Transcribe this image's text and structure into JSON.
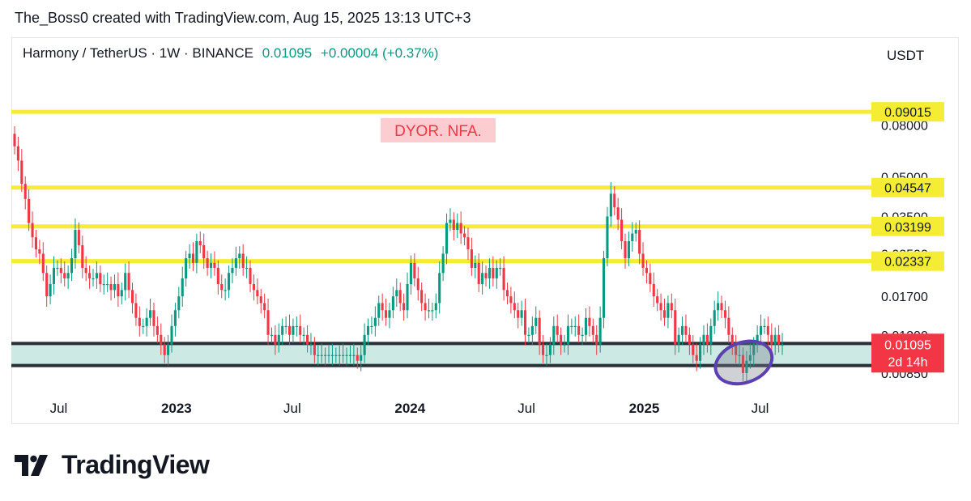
{
  "header": {
    "credit": "The_Boss0 created with TradingView.com, Aug 15, 2025 13:13 UTC+3"
  },
  "symbol": {
    "name": "Harmony / TetherUS · 1W · BINANCE",
    "last": "0.01095",
    "change": "+0.00004 (+0.37%)"
  },
  "axis_unit": "USDT",
  "brand": {
    "name": "TradingView",
    "logo": "tradingview-logo-icon"
  },
  "colors": {
    "up": "#089981",
    "down": "#f23645",
    "level": "#f5ec34",
    "zone": "#cde9e3",
    "marker": "#5b3fb3",
    "label_box": "#f5ec34",
    "current_box": "#f23645"
  },
  "chart_data": {
    "type": "candlestick",
    "y_scale": "log",
    "ylim": [
      0.0075,
      0.14
    ],
    "y_ticks": [
      "0.08000",
      "0.05000",
      "0.03500",
      "0.02500",
      "0.01700",
      "0.01200",
      "0.00850"
    ],
    "x_ticks": [
      "Jul",
      "2023",
      "Jul",
      "2024",
      "Jul",
      "2025",
      "Jul"
    ],
    "x_tick_bold": [
      false,
      true,
      false,
      true,
      false,
      true,
      false
    ],
    "x_tick_dates": [
      "2022-07-01",
      "2023-01-01",
      "2023-07-01",
      "2024-01-01",
      "2024-07-01",
      "2025-01-01",
      "2025-07-01"
    ],
    "xlim": [
      "2022-04-18",
      "2025-12-22"
    ],
    "horizontal_levels": [
      {
        "value": 0.09015,
        "label": "0.09015"
      },
      {
        "value": 0.04547,
        "label": "0.04547"
      },
      {
        "value": 0.03199,
        "label": "0.03199"
      },
      {
        "value": 0.02337,
        "label": "0.02337"
      }
    ],
    "support_zone": {
      "low": 0.0091,
      "high": 0.0111
    },
    "current_price": {
      "value": 0.01095,
      "label": "0.01095",
      "countdown": "2d 14h"
    },
    "annotation": "DYOR. NFA.",
    "highlight": {
      "from": "2025-04-21",
      "to": "2025-07-21",
      "low": 0.0078,
      "high": 0.0112
    },
    "candles_close": [
      0.066,
      0.058,
      0.047,
      0.041,
      0.033,
      0.029,
      0.026,
      0.025,
      0.021,
      0.017,
      0.019,
      0.022,
      0.022,
      0.021,
      0.02,
      0.021,
      0.024,
      0.031,
      0.027,
      0.022,
      0.021,
      0.02,
      0.02,
      0.021,
      0.019,
      0.019,
      0.019,
      0.018,
      0.019,
      0.017,
      0.018,
      0.021,
      0.018,
      0.016,
      0.014,
      0.013,
      0.013,
      0.014,
      0.015,
      0.013,
      0.012,
      0.011,
      0.01,
      0.011,
      0.013,
      0.015,
      0.017,
      0.02,
      0.024,
      0.025,
      0.023,
      0.028,
      0.027,
      0.024,
      0.022,
      0.023,
      0.022,
      0.019,
      0.018,
      0.018,
      0.021,
      0.022,
      0.024,
      0.025,
      0.022,
      0.022,
      0.019,
      0.018,
      0.017,
      0.016,
      0.015,
      0.012,
      0.012,
      0.011,
      0.012,
      0.013,
      0.013,
      0.012,
      0.013,
      0.013,
      0.012,
      0.012,
      0.011,
      0.011,
      0.01,
      0.01,
      0.01,
      0.01,
      0.01,
      0.01,
      0.01,
      0.01,
      0.01,
      0.01,
      0.01,
      0.01,
      0.0095,
      0.01,
      0.012,
      0.013,
      0.013,
      0.014,
      0.016,
      0.015,
      0.014,
      0.015,
      0.017,
      0.018,
      0.016,
      0.015,
      0.019,
      0.023,
      0.02,
      0.018,
      0.016,
      0.015,
      0.015,
      0.015,
      0.016,
      0.021,
      0.025,
      0.033,
      0.034,
      0.031,
      0.033,
      0.03,
      0.029,
      0.026,
      0.022,
      0.023,
      0.019,
      0.021,
      0.02,
      0.022,
      0.02,
      0.022,
      0.022,
      0.018,
      0.017,
      0.016,
      0.015,
      0.014,
      0.015,
      0.012,
      0.012,
      0.013,
      0.014,
      0.011,
      0.01,
      0.01,
      0.011,
      0.013,
      0.012,
      0.011,
      0.011,
      0.013,
      0.013,
      0.013,
      0.012,
      0.012,
      0.014,
      0.013,
      0.012,
      0.011,
      0.014,
      0.024,
      0.035,
      0.043,
      0.038,
      0.034,
      0.028,
      0.024,
      0.028,
      0.03,
      0.031,
      0.025,
      0.022,
      0.021,
      0.019,
      0.017,
      0.016,
      0.015,
      0.014,
      0.016,
      0.015,
      0.011,
      0.012,
      0.013,
      0.012,
      0.011,
      0.01,
      0.0095,
      0.011,
      0.012,
      0.011,
      0.013,
      0.015,
      0.016,
      0.015,
      0.014,
      0.012,
      0.011,
      0.01,
      0.01,
      0.0085,
      0.0095,
      0.01,
      0.011,
      0.012,
      0.013,
      0.013,
      0.012,
      0.011,
      0.012,
      0.011,
      0.011
    ]
  }
}
